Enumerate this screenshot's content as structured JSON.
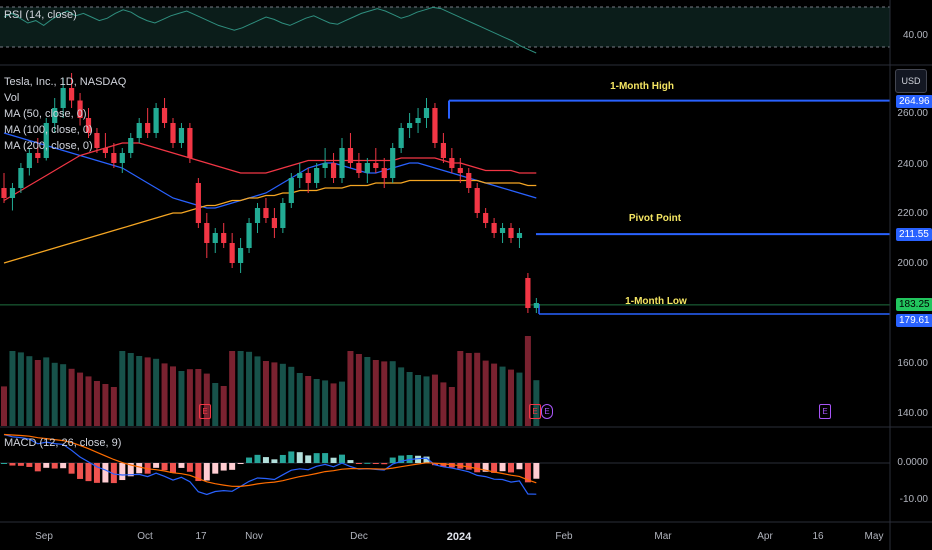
{
  "rsi": {
    "label": "RSI (14, close)",
    "level": "40.00",
    "values": [
      55,
      58,
      54,
      50,
      52,
      48,
      53,
      57,
      60,
      56,
      58,
      55,
      52,
      54,
      58,
      61,
      59,
      55,
      52,
      50,
      53,
      56,
      58,
      60,
      57,
      54,
      51,
      48,
      46,
      44,
      46,
      49,
      52,
      55,
      53,
      50,
      48,
      51,
      54,
      56,
      53,
      50,
      49,
      52,
      55,
      58,
      60,
      62,
      60,
      57,
      54,
      56,
      59,
      61,
      63,
      62,
      59,
      56,
      53,
      50,
      47,
      44,
      41,
      38,
      35,
      31,
      28,
      25
    ]
  },
  "main": {
    "symbol": "Tesla, Inc., 1D, NASDAQ",
    "vol_label": "Vol",
    "ma_labels": [
      "MA (50, close, 0)",
      "MA (100, close, 0)",
      "MA (200, close, 0)"
    ],
    "ma_colors": [
      "#2962ff",
      "#f23645",
      "#f5a623"
    ],
    "currency_button": "USD",
    "price_ticks": [
      "260.00",
      "240.00",
      "220.00",
      "200.00",
      "160.00",
      "140.00"
    ],
    "levels": {
      "month_high": {
        "label": "1-Month High",
        "value": 264.96,
        "value_text": "264.96"
      },
      "pivot": {
        "label": "Pivot Point",
        "value": 211.55,
        "value_text": "211.55"
      },
      "month_low": {
        "label": "1-Month Low",
        "value": 179.61,
        "value_text": "179.61"
      },
      "last_price": {
        "value": 183.25,
        "value_text": "183.25"
      }
    },
    "earnings_badges": [
      "E",
      "E",
      "E",
      "E"
    ]
  },
  "macd": {
    "label": "MACD (12, 26, close, 9)",
    "ticks": [
      "0.0000",
      "-10.00"
    ]
  },
  "x_axis": [
    {
      "text": "Sep",
      "bold": false
    },
    {
      "text": "Oct",
      "bold": false
    },
    {
      "text": "17",
      "bold": false
    },
    {
      "text": "Nov",
      "bold": false
    },
    {
      "text": "Dec",
      "bold": false
    },
    {
      "text": "2024",
      "bold": true
    },
    {
      "text": "Feb",
      "bold": false
    },
    {
      "text": "Mar",
      "bold": false
    },
    {
      "text": "Apr",
      "bold": false
    },
    {
      "text": "16",
      "bold": false
    },
    {
      "text": "May",
      "bold": false
    }
  ],
  "chart_data": {
    "type": "candlestick",
    "title": "Tesla, Inc., 1D, NASDAQ",
    "ylabel": "USD",
    "ylim": [
      130,
      275
    ],
    "candles": [
      {
        "o": 230,
        "h": 236,
        "l": 224,
        "c": 226
      },
      {
        "o": 226,
        "h": 232,
        "l": 221,
        "c": 230
      },
      {
        "o": 230,
        "h": 240,
        "l": 228,
        "c": 238
      },
      {
        "o": 238,
        "h": 246,
        "l": 235,
        "c": 244
      },
      {
        "o": 244,
        "h": 250,
        "l": 240,
        "c": 242
      },
      {
        "o": 242,
        "h": 258,
        "l": 241,
        "c": 256
      },
      {
        "o": 256,
        "h": 266,
        "l": 252,
        "c": 262
      },
      {
        "o": 262,
        "h": 274,
        "l": 258,
        "c": 270
      },
      {
        "o": 270,
        "h": 276,
        "l": 262,
        "c": 265
      },
      {
        "o": 265,
        "h": 268,
        "l": 255,
        "c": 258
      },
      {
        "o": 258,
        "h": 262,
        "l": 250,
        "c": 252
      },
      {
        "o": 252,
        "h": 254,
        "l": 244,
        "c": 246
      },
      {
        "o": 246,
        "h": 252,
        "l": 242,
        "c": 244
      },
      {
        "o": 244,
        "h": 248,
        "l": 238,
        "c": 240
      },
      {
        "o": 240,
        "h": 246,
        "l": 236,
        "c": 244
      },
      {
        "o": 244,
        "h": 252,
        "l": 242,
        "c": 250
      },
      {
        "o": 250,
        "h": 258,
        "l": 248,
        "c": 256
      },
      {
        "o": 256,
        "h": 262,
        "l": 250,
        "c": 252
      },
      {
        "o": 252,
        "h": 264,
        "l": 250,
        "c": 262
      },
      {
        "o": 262,
        "h": 266,
        "l": 254,
        "c": 256
      },
      {
        "o": 256,
        "h": 258,
        "l": 246,
        "c": 248
      },
      {
        "o": 248,
        "h": 256,
        "l": 246,
        "c": 254
      },
      {
        "o": 254,
        "h": 256,
        "l": 240,
        "c": 242
      },
      {
        "o": 232,
        "h": 234,
        "l": 214,
        "c": 216
      },
      {
        "o": 216,
        "h": 220,
        "l": 202,
        "c": 208
      },
      {
        "o": 208,
        "h": 214,
        "l": 204,
        "c": 212
      },
      {
        "o": 212,
        "h": 216,
        "l": 206,
        "c": 208
      },
      {
        "o": 208,
        "h": 212,
        "l": 198,
        "c": 200
      },
      {
        "o": 200,
        "h": 210,
        "l": 196,
        "c": 206
      },
      {
        "o": 206,
        "h": 218,
        "l": 204,
        "c": 216
      },
      {
        "o": 216,
        "h": 224,
        "l": 212,
        "c": 222
      },
      {
        "o": 222,
        "h": 226,
        "l": 216,
        "c": 218
      },
      {
        "o": 218,
        "h": 222,
        "l": 210,
        "c": 214
      },
      {
        "o": 214,
        "h": 226,
        "l": 212,
        "c": 224
      },
      {
        "o": 224,
        "h": 236,
        "l": 222,
        "c": 234
      },
      {
        "o": 234,
        "h": 240,
        "l": 230,
        "c": 236
      },
      {
        "o": 236,
        "h": 238,
        "l": 228,
        "c": 232
      },
      {
        "o": 232,
        "h": 240,
        "l": 230,
        "c": 238
      },
      {
        "o": 238,
        "h": 246,
        "l": 234,
        "c": 240
      },
      {
        "o": 240,
        "h": 244,
        "l": 232,
        "c": 234
      },
      {
        "o": 234,
        "h": 250,
        "l": 232,
        "c": 246
      },
      {
        "o": 246,
        "h": 252,
        "l": 238,
        "c": 240
      },
      {
        "o": 240,
        "h": 244,
        "l": 234,
        "c": 236
      },
      {
        "o": 236,
        "h": 242,
        "l": 232,
        "c": 240
      },
      {
        "o": 240,
        "h": 246,
        "l": 236,
        "c": 238
      },
      {
        "o": 238,
        "h": 242,
        "l": 230,
        "c": 234
      },
      {
        "o": 234,
        "h": 248,
        "l": 232,
        "c": 246
      },
      {
        "o": 246,
        "h": 256,
        "l": 244,
        "c": 254
      },
      {
        "o": 254,
        "h": 260,
        "l": 250,
        "c": 256
      },
      {
        "o": 256,
        "h": 262,
        "l": 252,
        "c": 258
      },
      {
        "o": 258,
        "h": 266,
        "l": 254,
        "c": 262
      },
      {
        "o": 262,
        "h": 264,
        "l": 246,
        "c": 248
      },
      {
        "o": 248,
        "h": 252,
        "l": 240,
        "c": 242
      },
      {
        "o": 242,
        "h": 246,
        "l": 236,
        "c": 238
      },
      {
        "o": 238,
        "h": 242,
        "l": 232,
        "c": 236
      },
      {
        "o": 236,
        "h": 238,
        "l": 228,
        "c": 230
      },
      {
        "o": 230,
        "h": 232,
        "l": 218,
        "c": 220
      },
      {
        "o": 220,
        "h": 222,
        "l": 214,
        "c": 216
      },
      {
        "o": 216,
        "h": 218,
        "l": 210,
        "c": 212
      },
      {
        "o": 212,
        "h": 216,
        "l": 208,
        "c": 214
      },
      {
        "o": 214,
        "h": 216,
        "l": 208,
        "c": 210
      },
      {
        "o": 210,
        "h": 214,
        "l": 206,
        "c": 212
      },
      {
        "o": 194,
        "h": 196,
        "l": 180,
        "c": 182
      },
      {
        "o": 182,
        "h": 186,
        "l": 180,
        "c": 184
      }
    ],
    "ma50": [
      252,
      251,
      250,
      249,
      248,
      247,
      246,
      245,
      244,
      243,
      242,
      241,
      240,
      239,
      238,
      236,
      234,
      232,
      230,
      228,
      226,
      225,
      224,
      223,
      222,
      222,
      223,
      224,
      225,
      226,
      227,
      228,
      230,
      232,
      234,
      236,
      238,
      239,
      240,
      240,
      239,
      238,
      237,
      236,
      236,
      237,
      238,
      239,
      240,
      240,
      239,
      238,
      237,
      236,
      235,
      234,
      233,
      232,
      231,
      230,
      229,
      228,
      227,
      226
    ],
    "ma100": [
      225,
      227,
      229,
      231,
      233,
      235,
      237,
      239,
      241,
      243,
      244,
      245,
      246,
      247,
      248,
      248,
      248,
      247,
      246,
      245,
      244,
      243,
      242,
      241,
      240,
      239,
      238,
      237,
      236,
      236,
      236,
      236,
      237,
      238,
      239,
      240,
      241,
      241,
      241,
      241,
      241,
      241,
      241,
      241,
      241,
      241,
      241,
      242,
      242,
      242,
      242,
      242,
      241,
      240,
      240,
      239,
      238,
      237,
      237,
      237,
      237,
      236,
      236,
      236
    ],
    "ma200": [
      200,
      201,
      202,
      203,
      204,
      205,
      206,
      207,
      208,
      209,
      210,
      211,
      212,
      213,
      214,
      215,
      216,
      217,
      218,
      219,
      220,
      220,
      221,
      222,
      223,
      223,
      224,
      225,
      225,
      226,
      226,
      227,
      227,
      228,
      228,
      229,
      229,
      229,
      230,
      230,
      230,
      231,
      231,
      231,
      232,
      232,
      232,
      232,
      233,
      233,
      233,
      233,
      233,
      233,
      233,
      233,
      233,
      232,
      232,
      232,
      232,
      232,
      231,
      231
    ]
  }
}
